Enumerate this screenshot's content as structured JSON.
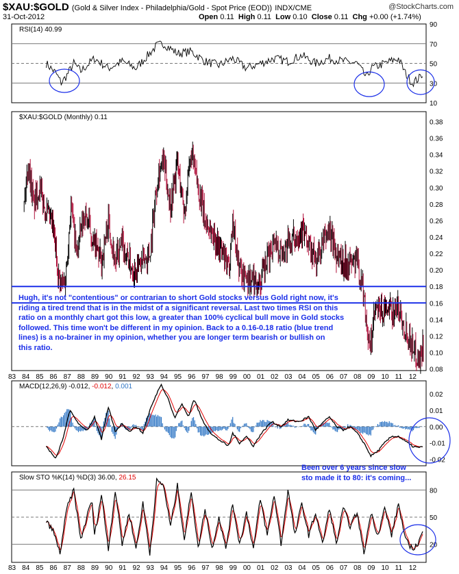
{
  "header": {
    "symbol": "$XAU:$GOLD",
    "description": "(Gold & Silver Index - Philadelphia/Gold - Spot Price (EOD))",
    "exchange": "INDX/CME",
    "date": "31-Oct-2012",
    "brand": "@StockCharts.com",
    "open_label": "Open",
    "open": "0.11",
    "high_label": "High",
    "high": "0.11",
    "low_label": "Low",
    "low": "0.10",
    "close_label": "Close",
    "close": "0.11",
    "chg_label": "Chg",
    "chg": "+0.00 (+1.74%)"
  },
  "colors": {
    "blue": "#1a2ee8",
    "bar_red": "#b0103a",
    "bar_black": "#000000",
    "hist": "#2e75c4",
    "signal": "#e00000"
  },
  "chart_data": [
    {
      "type": "line",
      "panel": "rsi",
      "label": "RSI(14) 40.99",
      "ylim": [
        10,
        90
      ],
      "yticks": [
        10,
        30,
        50,
        70,
        90
      ],
      "bands": [
        30,
        50,
        70
      ],
      "keypoints": [
        [
          1985.5,
          50
        ],
        [
          1986.2,
          40
        ],
        [
          1986.6,
          30
        ],
        [
          1987.0,
          38
        ],
        [
          1987.5,
          50
        ],
        [
          1988,
          42
        ],
        [
          1989,
          55
        ],
        [
          1990,
          45
        ],
        [
          1991,
          52
        ],
        [
          1992,
          45
        ],
        [
          1993.5,
          68
        ],
        [
          1994,
          70
        ],
        [
          1995,
          60
        ],
        [
          1996,
          62
        ],
        [
          1997,
          52
        ],
        [
          1998,
          48
        ],
        [
          1999,
          55
        ],
        [
          2000,
          45
        ],
        [
          2001,
          50
        ],
        [
          2002,
          55
        ],
        [
          2003,
          52
        ],
        [
          2004,
          58
        ],
        [
          2005,
          50
        ],
        [
          2006,
          55
        ],
        [
          2007,
          52
        ],
        [
          2008,
          50
        ],
        [
          2008.7,
          35
        ],
        [
          2009,
          45
        ],
        [
          2010,
          50
        ],
        [
          2011,
          55
        ],
        [
          2011.5,
          40
        ],
        [
          2012,
          30
        ],
        [
          2012.5,
          35
        ],
        [
          2012.8,
          40.99
        ]
      ]
    },
    {
      "type": "ohlc",
      "panel": "price",
      "label": "$XAU:$GOLD (Monthly) 0.11",
      "ylim": [
        0.08,
        0.38
      ],
      "yticks": [
        "0.08",
        "0.10",
        "0.12",
        "0.14",
        "0.16",
        "0.18",
        "0.20",
        "0.22",
        "0.24",
        "0.26",
        "0.28",
        "0.30",
        "0.32",
        "0.34",
        "0.36",
        "0.38"
      ],
      "trend_lines": [
        0.16,
        0.18
      ],
      "keypoints": [
        [
          1983.9,
          0.28
        ],
        [
          1984.2,
          0.33
        ],
        [
          1984.6,
          0.28
        ],
        [
          1985,
          0.3
        ],
        [
          1985.5,
          0.27
        ],
        [
          1986,
          0.25
        ],
        [
          1986.5,
          0.18
        ],
        [
          1986.9,
          0.19
        ],
        [
          1987.3,
          0.28
        ],
        [
          1987.7,
          0.22
        ],
        [
          1988.3,
          0.27
        ],
        [
          1989,
          0.23
        ],
        [
          1989.5,
          0.21
        ],
        [
          1990,
          0.26
        ],
        [
          1990.5,
          0.21
        ],
        [
          1991,
          0.23
        ],
        [
          1991.8,
          0.2
        ],
        [
          1992.5,
          0.21
        ],
        [
          1993,
          0.22
        ],
        [
          1993.6,
          0.32
        ],
        [
          1994,
          0.33
        ],
        [
          1994.5,
          0.28
        ],
        [
          1995,
          0.33
        ],
        [
          1995.5,
          0.27
        ],
        [
          1996,
          0.34
        ],
        [
          1996.5,
          0.3
        ],
        [
          1997,
          0.26
        ],
        [
          1998,
          0.23
        ],
        [
          1998.7,
          0.2
        ],
        [
          1999,
          0.26
        ],
        [
          1999.5,
          0.2
        ],
        [
          2000,
          0.19
        ],
        [
          2001,
          0.185
        ],
        [
          2001.5,
          0.21
        ],
        [
          2002,
          0.24
        ],
        [
          2002.5,
          0.22
        ],
        [
          2003,
          0.23
        ],
        [
          2004,
          0.25
        ],
        [
          2005,
          0.21
        ],
        [
          2005.5,
          0.23
        ],
        [
          2006,
          0.25
        ],
        [
          2006.5,
          0.22
        ],
        [
          2007,
          0.21
        ],
        [
          2007.7,
          0.21
        ],
        [
          2008,
          0.21
        ],
        [
          2008.5,
          0.17
        ],
        [
          2008.9,
          0.1
        ],
        [
          2009.3,
          0.15
        ],
        [
          2010,
          0.15
        ],
        [
          2010.5,
          0.15
        ],
        [
          2011,
          0.155
        ],
        [
          2011.5,
          0.13
        ],
        [
          2012,
          0.11
        ],
        [
          2012.5,
          0.09
        ],
        [
          2012.8,
          0.11
        ]
      ]
    },
    {
      "type": "line",
      "panel": "macd",
      "label": "MACD(12,26,9) -0.012, -0.012, 0.001",
      "legend": [
        "MACD(12,26,9) -0.012",
        "-0.012",
        "0.001"
      ],
      "ylim": [
        -0.024,
        0.028
      ],
      "yticks": [
        "0.02",
        "0.01",
        "0.00",
        "-0.01",
        "-0.02"
      ],
      "ytick_values": [
        0.02,
        0.01,
        0.0,
        -0.01,
        -0.02
      ],
      "keypoints": [
        [
          1985.5,
          -0.012
        ],
        [
          1986.2,
          -0.02
        ],
        [
          1986.8,
          -0.005
        ],
        [
          1987.2,
          0.01
        ],
        [
          1987.6,
          0.005
        ],
        [
          1988,
          0.0
        ],
        [
          1988.5,
          -0.002
        ],
        [
          1989,
          0.006
        ],
        [
          1989.5,
          -0.008
        ],
        [
          1990,
          0.012
        ],
        [
          1990.5,
          -0.003
        ],
        [
          1991,
          0.002
        ],
        [
          1991.5,
          -0.003
        ],
        [
          1992,
          0.0
        ],
        [
          1992.5,
          -0.004
        ],
        [
          1993,
          0.01
        ],
        [
          1993.8,
          0.026
        ],
        [
          1994.3,
          0.018
        ],
        [
          1994.8,
          0.005
        ],
        [
          1995.3,
          0.014
        ],
        [
          1995.8,
          0.006
        ],
        [
          1996.2,
          0.017
        ],
        [
          1996.8,
          0.004
        ],
        [
          1997.5,
          -0.005
        ],
        [
          1998,
          -0.008
        ],
        [
          1998.7,
          -0.012
        ],
        [
          1999,
          -0.004
        ],
        [
          1999.5,
          -0.01
        ],
        [
          2000,
          -0.006
        ],
        [
          2000.5,
          -0.012
        ],
        [
          2001,
          -0.005
        ],
        [
          2001.8,
          0.003
        ],
        [
          2002.5,
          0.0
        ],
        [
          2003,
          0.004
        ],
        [
          2003.8,
          0.003
        ],
        [
          2004.5,
          0.006
        ],
        [
          2005,
          -0.002
        ],
        [
          2005.5,
          0.002
        ],
        [
          2006,
          0.006
        ],
        [
          2006.5,
          0.0
        ],
        [
          2007,
          -0.002
        ],
        [
          2007.5,
          0.0
        ],
        [
          2008,
          -0.004
        ],
        [
          2008.5,
          -0.01
        ],
        [
          2009,
          -0.018
        ],
        [
          2009.5,
          -0.015
        ],
        [
          2010,
          -0.01
        ],
        [
          2010.5,
          -0.006
        ],
        [
          2011,
          -0.006
        ],
        [
          2011.5,
          -0.009
        ],
        [
          2012,
          -0.012
        ],
        [
          2012.5,
          -0.013
        ],
        [
          2012.8,
          -0.012
        ]
      ]
    },
    {
      "type": "line",
      "panel": "sto",
      "label": "Slow STO %K(14) %D(3) 36.00, 26.15",
      "legend": [
        "Slow STO %K(14) %D(3) 36.00",
        "26.15"
      ],
      "ylim": [
        0,
        100
      ],
      "yticks": [
        20,
        50,
        80
      ],
      "bands": [
        20,
        50,
        80
      ],
      "keypoints": [
        [
          1985.5,
          45
        ],
        [
          1986,
          35
        ],
        [
          1986.5,
          10
        ],
        [
          1987,
          60
        ],
        [
          1987.5,
          80
        ],
        [
          1988,
          25
        ],
        [
          1988.8,
          70
        ],
        [
          1989,
          30
        ],
        [
          1989.5,
          75
        ],
        [
          1990,
          15
        ],
        [
          1990.5,
          80
        ],
        [
          1991,
          20
        ],
        [
          1991.5,
          55
        ],
        [
          1992,
          15
        ],
        [
          1992.5,
          65
        ],
        [
          1993,
          10
        ],
        [
          1993.5,
          90
        ],
        [
          1994,
          85
        ],
        [
          1994.5,
          40
        ],
        [
          1995,
          85
        ],
        [
          1995.5,
          25
        ],
        [
          1996,
          80
        ],
        [
          1996.5,
          15
        ],
        [
          1997,
          60
        ],
        [
          1997.5,
          15
        ],
        [
          1998,
          50
        ],
        [
          1998.5,
          15
        ],
        [
          1999,
          65
        ],
        [
          1999.5,
          20
        ],
        [
          2000,
          55
        ],
        [
          2000.5,
          15
        ],
        [
          2001,
          70
        ],
        [
          2001.5,
          30
        ],
        [
          2002,
          75
        ],
        [
          2002.5,
          20
        ],
        [
          2003,
          80
        ],
        [
          2003.5,
          30
        ],
        [
          2004,
          65
        ],
        [
          2004.5,
          30
        ],
        [
          2005,
          55
        ],
        [
          2005.5,
          20
        ],
        [
          2006,
          60
        ],
        [
          2006.5,
          20
        ],
        [
          2007,
          60
        ],
        [
          2007.5,
          40
        ],
        [
          2008,
          55
        ],
        [
          2008.5,
          10
        ],
        [
          2009,
          55
        ],
        [
          2009.5,
          30
        ],
        [
          2010,
          60
        ],
        [
          2010.5,
          30
        ],
        [
          2011,
          65
        ],
        [
          2011.5,
          25
        ],
        [
          2012,
          15
        ],
        [
          2012.4,
          20
        ],
        [
          2012.8,
          36
        ]
      ]
    }
  ],
  "x_axis": {
    "labels": [
      "83",
      "84",
      "85",
      "86",
      "87",
      "88",
      "89",
      "90",
      "91",
      "92",
      "93",
      "94",
      "95",
      "96",
      "97",
      "98",
      "99",
      "00",
      "01",
      "02",
      "03",
      "04",
      "05",
      "06",
      "07",
      "08",
      "09",
      "10",
      "11",
      "12"
    ],
    "first_year": 1983
  },
  "annotations": {
    "main_note": [
      "Hugh, it's not \"contentious\" or contrarian to short Gold stocks versus Gold right now, it's",
      "riding a tired trend that is in the midst of a significant reversal. Last two times RSI on this",
      "ratio on a monthly chart got this low, a greater than 100% cyclical bull move in Gold stocks",
      "followed. This time won't be different in my opinion. Back to a 0.16-0.18 ratio (blue trend",
      "lines) is a no-brainer in my opinion, whether you are longer term bearish or bullish on",
      "this ratio."
    ],
    "sto_note": [
      "Been over 6 years since slow",
      "sto made it to 80: it's coming..."
    ]
  }
}
